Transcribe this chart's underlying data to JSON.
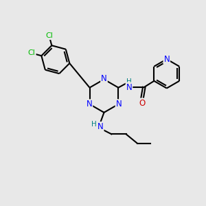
{
  "bg_color": "#e8e8e8",
  "bond_color": "#000000",
  "n_color": "#0000ff",
  "o_color": "#cc0000",
  "cl_color": "#00bb00",
  "h_color": "#008080",
  "line_width": 1.5,
  "figsize": [
    3.0,
    3.0
  ],
  "dpi": 100,
  "xlim": [
    0,
    10
  ],
  "ylim": [
    0,
    10
  ]
}
